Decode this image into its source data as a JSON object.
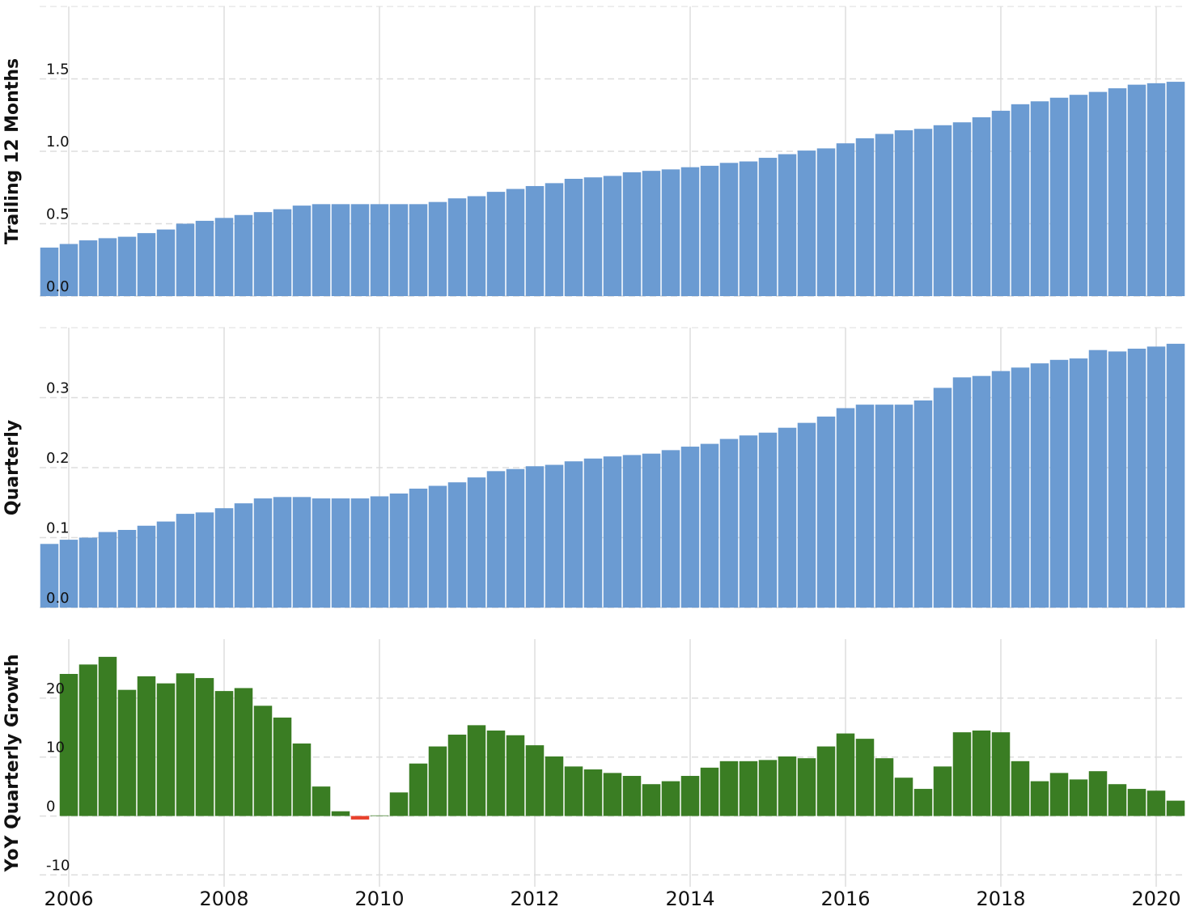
{
  "chart_data": [
    {
      "type": "bar",
      "y_label": "Trailing 12 Months",
      "color": "#6b9bd2",
      "grid": true,
      "x": [
        2005.75,
        2006,
        2006.25,
        2006.5,
        2006.75,
        2007,
        2007.25,
        2007.5,
        2007.75,
        2008,
        2008.25,
        2008.5,
        2008.75,
        2009,
        2009.25,
        2009.5,
        2009.75,
        2010,
        2010.25,
        2010.5,
        2010.75,
        2011,
        2011.25,
        2011.5,
        2011.75,
        2012,
        2012.25,
        2012.5,
        2012.75,
        2013,
        2013.25,
        2013.5,
        2013.75,
        2014,
        2014.25,
        2014.5,
        2014.75,
        2015,
        2015.25,
        2015.5,
        2015.75,
        2016,
        2016.25,
        2016.5,
        2016.75,
        2017,
        2017.25,
        2017.5,
        2017.75,
        2018,
        2018.25,
        2018.5,
        2018.75,
        2019,
        2019.25,
        2019.5,
        2019.75,
        2020,
        2020.25
      ],
      "values": [
        0.335,
        0.36,
        0.385,
        0.4,
        0.41,
        0.435,
        0.46,
        0.5,
        0.52,
        0.54,
        0.56,
        0.58,
        0.6,
        0.625,
        0.635,
        0.635,
        0.635,
        0.635,
        0.635,
        0.635,
        0.65,
        0.675,
        0.69,
        0.72,
        0.74,
        0.76,
        0.78,
        0.81,
        0.82,
        0.83,
        0.855,
        0.865,
        0.875,
        0.89,
        0.9,
        0.92,
        0.93,
        0.955,
        0.98,
        1.005,
        1.02,
        1.055,
        1.09,
        1.12,
        1.145,
        1.155,
        1.18,
        1.2,
        1.235,
        1.28,
        1.325,
        1.345,
        1.37,
        1.39,
        1.41,
        1.435,
        1.46,
        1.47,
        1.48
      ],
      "xlim": [
        2005.625,
        2020.375
      ],
      "xticks": [
        2006,
        2008,
        2010,
        2012,
        2014,
        2016,
        2018,
        2020
      ],
      "ylim": [
        0,
        2
      ],
      "yticks": [
        {
          "value": 0,
          "label": "0.0"
        },
        0.5,
        {
          "value": 1,
          "label": "1.0"
        },
        1.5
      ]
    },
    {
      "type": "bar",
      "y_label": "Quarterly",
      "color": "#6b9bd2",
      "grid": true,
      "x": [
        2005.75,
        2006,
        2006.25,
        2006.5,
        2006.75,
        2007,
        2007.25,
        2007.5,
        2007.75,
        2008,
        2008.25,
        2008.5,
        2008.75,
        2009,
        2009.25,
        2009.5,
        2009.75,
        2010,
        2010.25,
        2010.5,
        2010.75,
        2011,
        2011.25,
        2011.5,
        2011.75,
        2012,
        2012.25,
        2012.5,
        2012.75,
        2013,
        2013.25,
        2013.5,
        2013.75,
        2014,
        2014.25,
        2014.5,
        2014.75,
        2015,
        2015.25,
        2015.5,
        2015.75,
        2016,
        2016.25,
        2016.5,
        2016.75,
        2017,
        2017.25,
        2017.5,
        2017.75,
        2018,
        2018.25,
        2018.5,
        2018.75,
        2019,
        2019.25,
        2019.5,
        2019.75,
        2020,
        2020.25
      ],
      "values": [
        0.091,
        0.097,
        0.1,
        0.108,
        0.111,
        0.117,
        0.123,
        0.134,
        0.136,
        0.142,
        0.149,
        0.156,
        0.158,
        0.158,
        0.156,
        0.156,
        0.156,
        0.159,
        0.163,
        0.17,
        0.174,
        0.179,
        0.186,
        0.195,
        0.198,
        0.202,
        0.204,
        0.209,
        0.213,
        0.216,
        0.218,
        0.22,
        0.225,
        0.23,
        0.234,
        0.241,
        0.246,
        0.25,
        0.257,
        0.264,
        0.273,
        0.285,
        0.29,
        0.29,
        0.29,
        0.296,
        0.314,
        0.329,
        0.331,
        0.338,
        0.343,
        0.349,
        0.354,
        0.356,
        0.368,
        0.366,
        0.37,
        0.373,
        0.377
      ],
      "xlim": [
        2005.625,
        2020.375
      ],
      "xticks": [
        2006,
        2008,
        2010,
        2012,
        2014,
        2016,
        2018,
        2020
      ],
      "ylim": [
        0,
        0.4
      ],
      "yticks": [
        {
          "value": 0,
          "label": "0.0"
        },
        0.1,
        0.2,
        0.3
      ]
    },
    {
      "type": "bar",
      "y_label": "YoY Quarterly Growth",
      "color": "#3a7d23",
      "negative_color": "#e8412c",
      "grid": true,
      "x": [
        2006,
        2006.25,
        2006.5,
        2006.75,
        2007,
        2007.25,
        2007.5,
        2007.75,
        2008,
        2008.25,
        2008.5,
        2008.75,
        2009,
        2009.25,
        2009.5,
        2009.75,
        2010,
        2010.25,
        2010.5,
        2010.75,
        2011,
        2011.25,
        2011.5,
        2011.75,
        2012,
        2012.25,
        2012.5,
        2012.75,
        2013,
        2013.25,
        2013.5,
        2013.75,
        2014,
        2014.25,
        2014.5,
        2014.75,
        2015,
        2015.25,
        2015.5,
        2015.75,
        2016,
        2016.25,
        2016.5,
        2016.75,
        2017,
        2017.25,
        2017.5,
        2017.75,
        2018,
        2018.25,
        2018.5,
        2018.75,
        2019,
        2019.25,
        2019.5,
        2019.75,
        2020,
        2020.25
      ],
      "values": [
        24.1,
        25.7,
        27.0,
        21.4,
        23.7,
        22.5,
        24.2,
        23.4,
        21.2,
        21.7,
        18.7,
        16.7,
        12.3,
        5.0,
        0.8,
        -0.6,
        0.1,
        4.0,
        8.9,
        11.8,
        13.8,
        15.4,
        14.5,
        13.7,
        12.0,
        10.1,
        8.4,
        7.9,
        7.3,
        6.8,
        5.4,
        5.9,
        6.8,
        8.2,
        9.3,
        9.3,
        9.5,
        10.1,
        9.8,
        11.8,
        14.0,
        13.1,
        9.8,
        6.5,
        4.6,
        8.4,
        14.2,
        14.5,
        14.2,
        9.3,
        5.9,
        7.3,
        6.2,
        7.6,
        5.4,
        4.6,
        4.3,
        2.6
      ],
      "xlim": [
        2005.625,
        2020.375
      ],
      "xticks": [
        2006,
        2008,
        2010,
        2012,
        2014,
        2016,
        2018,
        2020
      ],
      "ylim": [
        -12,
        30
      ],
      "yticks": [
        -10,
        0,
        10,
        20
      ]
    }
  ]
}
